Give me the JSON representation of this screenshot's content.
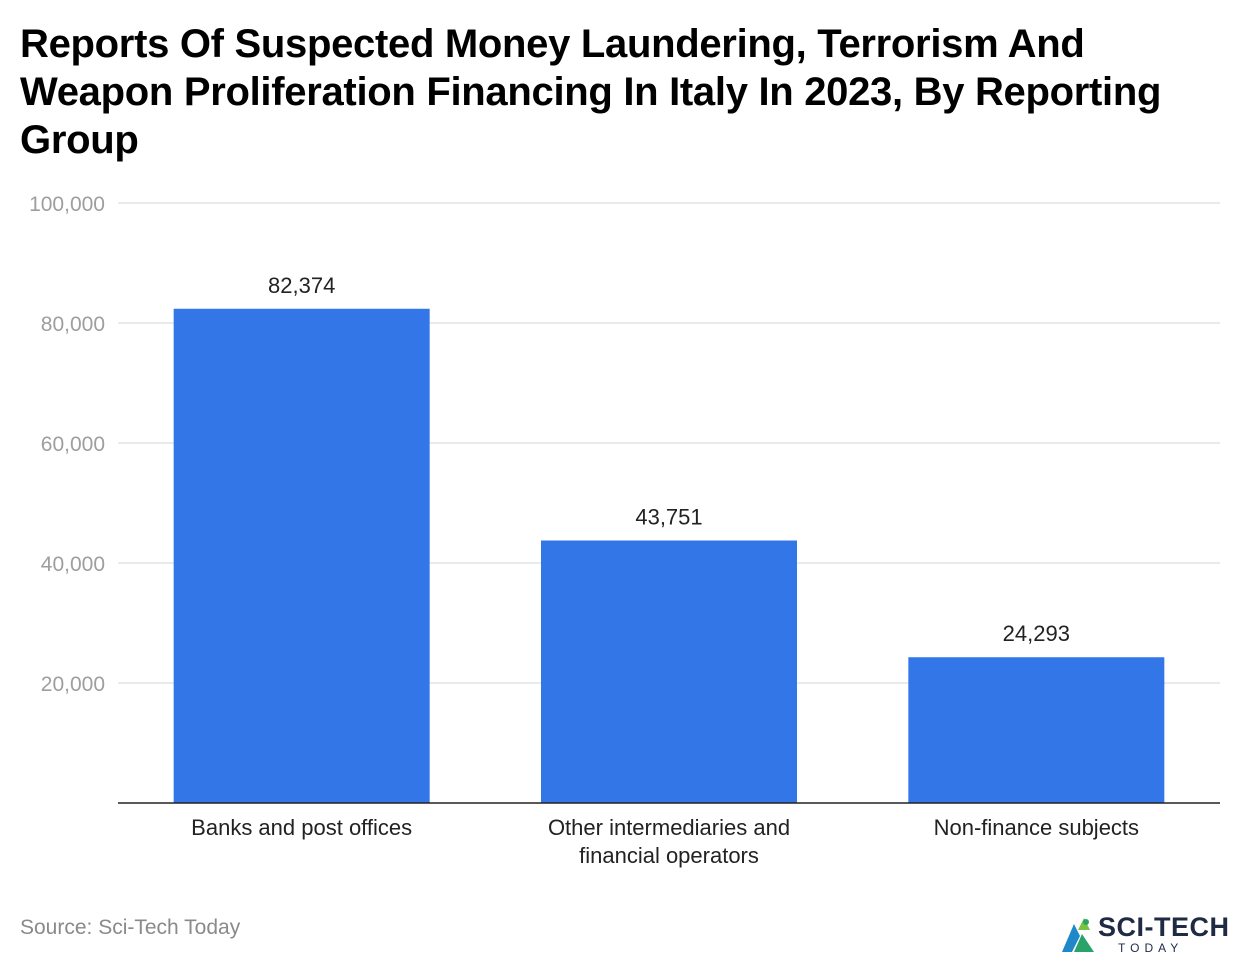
{
  "chart_data": {
    "type": "bar",
    "title": "Reports Of Suspected Money Laundering, Terrorism And Weapon Proliferation Financing In Italy In 2023, By Reporting Group",
    "categories": [
      [
        "Banks and post offices"
      ],
      [
        "Other intermediaries and",
        "financial operators"
      ],
      [
        "Non-finance subjects"
      ]
    ],
    "values": [
      82374,
      43751,
      24293
    ],
    "value_labels": [
      "82,374",
      "43,751",
      "24,293"
    ],
    "yticks": [
      20000,
      40000,
      60000,
      80000,
      100000
    ],
    "ytick_labels": [
      "20,000",
      "40,000",
      "60,000",
      "80,000",
      "100,000"
    ],
    "ylim": [
      0,
      100000
    ],
    "grid": true,
    "bar_color": "#3276e8"
  },
  "source": "Source: Sci-Tech Today",
  "logo": {
    "name": "SCI-TECH",
    "sub": "TODAY"
  }
}
